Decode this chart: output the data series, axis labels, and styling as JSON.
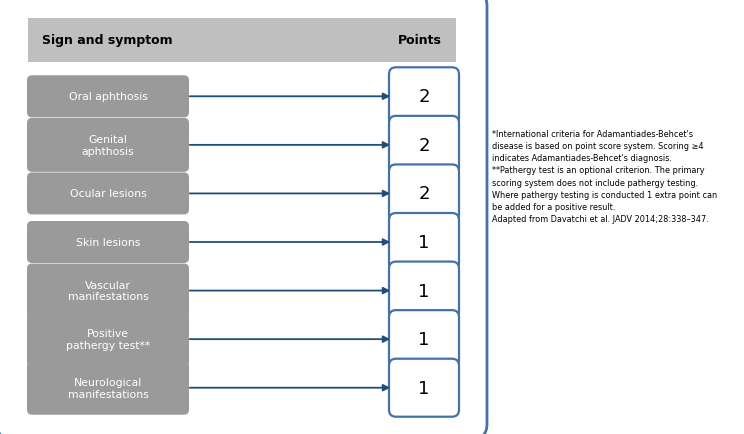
{
  "header_col1": "Sign and symptom",
  "header_col2": "Points",
  "rows": [
    {
      "label": "Oral aphthosis",
      "points": "2"
    },
    {
      "label": "Genital\naphthosis",
      "points": "2"
    },
    {
      "label": "Ocular lesions",
      "points": "2"
    },
    {
      "label": "Skin lesions",
      "points": "1"
    },
    {
      "label": "Vascular\nmanifestations",
      "points": "1"
    },
    {
      "label": "Positive\npathergy test**",
      "points": "1"
    },
    {
      "label": "Neurological\nmanifestations",
      "points": "1"
    }
  ],
  "footnote_lines": [
    "*International criteria for Adamantiades-Behcet's",
    "disease is based on point score system. Scoring ≥4",
    "indicates Adamantiades-Behcet's diagnosis.",
    "**Pathergy test is an optional criterion. The primary",
    "scoring system does not include pathergy testing.",
    "Where pathergy testing is conducted 1 extra point can",
    "be added for a positive result.",
    "Adapted from Davatchi et al. JADV 2014;28:338–347."
  ],
  "outer_box_color": "#4472a8",
  "header_bg_color": "#bfbfbf",
  "label_bg_color": "#9a9a9a",
  "point_box_color": "#4472a8",
  "arrow_color": "#1f4e79",
  "background_color": "#ffffff",
  "fig_width": 7.44,
  "fig_height": 4.35,
  "dpi": 100
}
